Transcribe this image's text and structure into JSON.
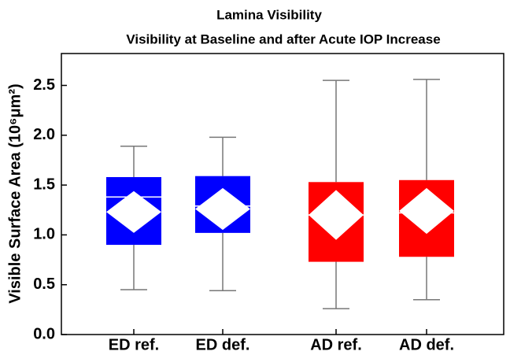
{
  "chart_data": {
    "type": "box",
    "title": "Lamina Visibility",
    "subtitle": "Visibility at Baseline and after Acute IOP Increase",
    "ylabel": "Visible Surface Area (10⁶μm²)",
    "categories": [
      "ED ref.",
      "ED def.",
      "AD ref.",
      "AD def."
    ],
    "colors": [
      "#0000ff",
      "#0000ff",
      "#ff0000",
      "#ff0000"
    ],
    "boxes": [
      {
        "min": 0.45,
        "q1": 0.9,
        "median": 1.38,
        "q3": 1.58,
        "max": 1.89,
        "mean": 1.23,
        "ci": [
          1.02,
          1.44
        ]
      },
      {
        "min": 0.44,
        "q1": 1.02,
        "median": 1.29,
        "q3": 1.59,
        "max": 1.98,
        "mean": 1.26,
        "ci": [
          1.05,
          1.47
        ]
      },
      {
        "min": 0.26,
        "q1": 0.73,
        "median": 1.2,
        "q3": 1.53,
        "max": 2.55,
        "mean": 1.2,
        "ci": [
          0.95,
          1.45
        ]
      },
      {
        "min": 0.35,
        "q1": 0.78,
        "median": 1.22,
        "q3": 1.55,
        "max": 2.56,
        "mean": 1.24,
        "ci": [
          1.01,
          1.47
        ]
      }
    ],
    "ylim": [
      0,
      2.82
    ],
    "yticks": [
      {
        "value": 0,
        "label": "0.0"
      },
      0.5,
      {
        "value": 1,
        "label": "1.0"
      },
      1.5,
      {
        "value": 2,
        "label": "2.0"
      },
      2.5
    ]
  }
}
